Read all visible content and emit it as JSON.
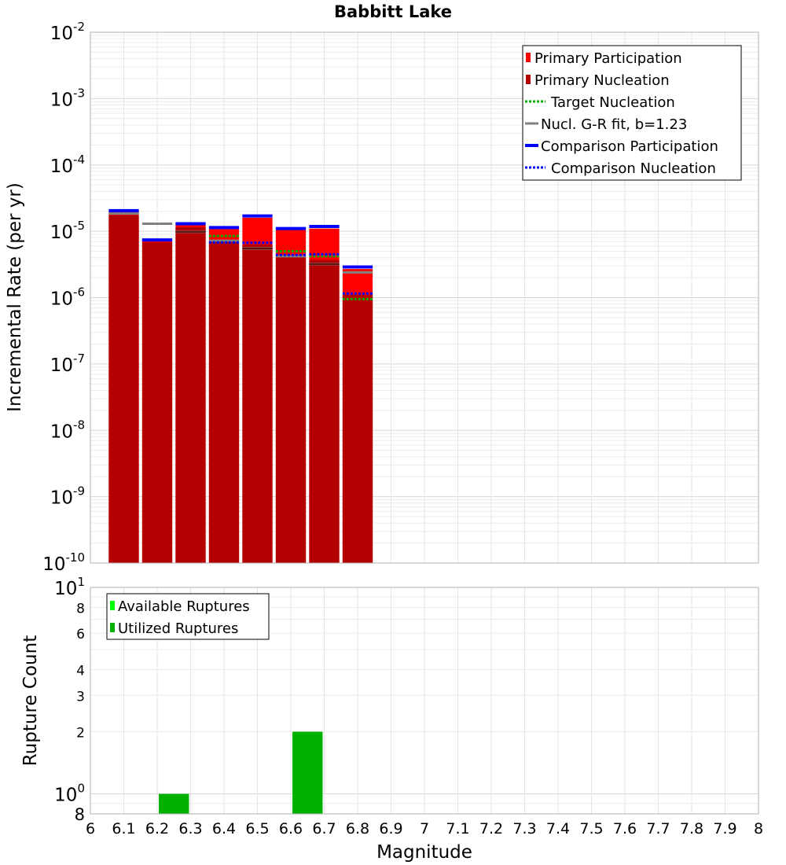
{
  "chart_data": [
    {
      "type": "bar",
      "title": "Babbitt Lake",
      "xlabel": "",
      "ylabel": "Incremental Rate (per yr)",
      "y_scale": "log",
      "xlim": [
        6,
        8
      ],
      "ylim": [
        1e-10,
        0.01
      ],
      "bar_centers": [
        6.1,
        6.2,
        6.3,
        6.4,
        6.5,
        6.6,
        6.7,
        6.8
      ],
      "y_ticks": [
        {
          "base": "10",
          "exp": "-10",
          "value": 1e-10
        },
        {
          "base": "10",
          "exp": "-9",
          "value": 1e-09
        },
        {
          "base": "10",
          "exp": "-8",
          "value": 1e-08
        },
        {
          "base": "10",
          "exp": "-7",
          "value": 1e-07
        },
        {
          "base": "10",
          "exp": "-6",
          "value": 1e-06
        },
        {
          "base": "10",
          "exp": "-5",
          "value": 1e-05
        },
        {
          "base": "10",
          "exp": "-4",
          "value": 0.0001
        },
        {
          "base": "10",
          "exp": "-3",
          "value": 0.001
        },
        {
          "base": "10",
          "exp": "-2",
          "value": 0.01
        }
      ],
      "grid": true,
      "legend_position": "top-right",
      "legend": [
        {
          "label": "Primary Participation",
          "style": "bar",
          "color": "#ff0000"
        },
        {
          "label": "Primary Nucleation",
          "style": "bar",
          "color": "#b30000"
        },
        {
          "label": "Target Nucleation",
          "style": "dotted",
          "color": "#00b000"
        },
        {
          "label": "Nucl. G-R fit, b=1.23",
          "style": "solid",
          "color": "#808080"
        },
        {
          "label": "Comparison Participation",
          "style": "solid-thick",
          "color": "#0000ff"
        },
        {
          "label": "Comparison Nucleation",
          "style": "dotted",
          "color": "#0000ff"
        }
      ],
      "series": [
        {
          "name": "Primary Participation",
          "color": "#ff0000",
          "values": [
            2e-05,
            7.2e-06,
            1.28e-05,
            1.08e-05,
            1.6e-05,
            1.05e-05,
            1.1e-05,
            2.7e-06
          ]
        },
        {
          "name": "Primary Nucleation",
          "color": "#b30000",
          "values": [
            1.75e-05,
            6.8e-06,
            1.15e-05,
            7e-06,
            6.3e-06,
            4.2e-06,
            3.7e-06,
            1.1e-06
          ]
        },
        {
          "name": "Target Nucleation",
          "color": "#00b000",
          "values": [
            null,
            null,
            null,
            8.5e-06,
            null,
            5e-06,
            4.2e-06,
            9.5e-07
          ]
        },
        {
          "name": "Nucl. G-R fit, b=1.23",
          "color": "#808080",
          "values": [
            1.85e-05,
            1.3e-05,
            9.8e-06,
            7.2e-06,
            5.5e-06,
            4.2e-06,
            3.2e-06,
            2.4e-06
          ]
        },
        {
          "name": "Comparison Participation",
          "color": "#0000ff",
          "values": [
            2.05e-05,
            7.4e-06,
            1.3e-05,
            1.14e-05,
            1.7e-05,
            1.1e-05,
            1.18e-05,
            2.9e-06
          ]
        },
        {
          "name": "Comparison Nucleation",
          "color": "#0000ff",
          "values": [
            null,
            7.4e-06,
            null,
            6.8e-06,
            6.7e-06,
            4.4e-06,
            4.5e-06,
            1.15e-06
          ]
        }
      ]
    },
    {
      "type": "bar",
      "title": "",
      "xlabel": "Magnitude",
      "ylabel": "Rupture Count",
      "y_scale": "log",
      "xlim": [
        6,
        8
      ],
      "ylim": [
        0.8,
        10
      ],
      "y_ticks": [
        {
          "base": "10",
          "exp": "0",
          "value": 1
        },
        {
          "base": "2",
          "exp": "",
          "value": 2
        },
        {
          "base": "3",
          "exp": "",
          "value": 3
        },
        {
          "base": "4",
          "exp": "",
          "value": 4
        },
        {
          "base": "6",
          "exp": "",
          "value": 6
        },
        {
          "base": "8",
          "exp": "",
          "value": 8
        },
        {
          "base": "10",
          "exp": "1",
          "value": 10
        }
      ],
      "y_bottom_label": "8",
      "x_ticks": [
        "6",
        "6.1",
        "6.2",
        "6.3",
        "6.4",
        "6.5",
        "6.6",
        "6.7",
        "6.8",
        "6.9",
        "7",
        "7.1",
        "7.2",
        "7.3",
        "7.4",
        "7.5",
        "7.6",
        "7.7",
        "7.8",
        "7.9",
        "8"
      ],
      "x_tick_values": [
        6,
        6.1,
        6.2,
        6.3,
        6.4,
        6.5,
        6.6,
        6.7,
        6.8,
        6.9,
        7,
        7.1,
        7.2,
        7.3,
        7.4,
        7.5,
        7.6,
        7.7,
        7.8,
        7.9,
        8
      ],
      "grid": true,
      "legend_position": "top-left",
      "legend": [
        {
          "label": "Available Ruptures",
          "style": "bar",
          "color": "#00ff00"
        },
        {
          "label": "Utilized Ruptures",
          "style": "bar",
          "color": "#00b000"
        }
      ],
      "series": [
        {
          "name": "Available Ruptures",
          "color": "#00ff00",
          "x": [
            6.25,
            6.65
          ],
          "values": [
            1,
            2
          ]
        },
        {
          "name": "Utilized Ruptures",
          "color": "#00b000",
          "x": [
            6.25,
            6.65
          ],
          "values": [
            1,
            2
          ]
        }
      ]
    }
  ]
}
